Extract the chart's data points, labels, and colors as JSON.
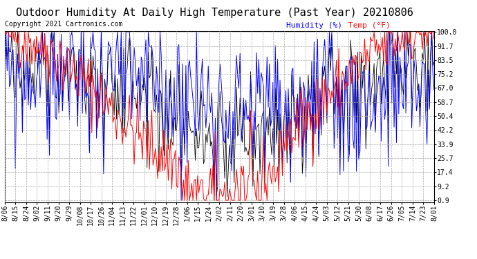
{
  "title": "Outdoor Humidity At Daily High Temperature (Past Year) 20210806",
  "copyright": "Copyright 2021 Cartronics.com",
  "legend_humidity": "Humidity (%)",
  "legend_temp": "Temp (°F)",
  "humidity_color": "#0000FF",
  "temp_color": "#FF0000",
  "black_color": "#000000",
  "background_color": "#FFFFFF",
  "grid_color": "#AAAAAA",
  "yticks": [
    0.9,
    9.2,
    17.4,
    25.7,
    33.9,
    42.2,
    50.4,
    58.7,
    67.0,
    75.2,
    83.5,
    91.7,
    100.0
  ],
  "xtick_labels": [
    "8/06",
    "8/15",
    "8/24",
    "9/02",
    "9/11",
    "9/20",
    "9/29",
    "10/08",
    "10/17",
    "10/26",
    "11/04",
    "11/13",
    "11/22",
    "12/01",
    "12/10",
    "12/19",
    "12/28",
    "1/06",
    "1/15",
    "1/24",
    "2/02",
    "2/11",
    "2/20",
    "3/01",
    "3/10",
    "3/19",
    "3/28",
    "4/06",
    "4/15",
    "4/24",
    "5/03",
    "5/12",
    "5/21",
    "5/30",
    "6/08",
    "6/17",
    "6/26",
    "7/05",
    "7/14",
    "7/23",
    "8/01"
  ],
  "n_points": 366,
  "ylim_min": 0.9,
  "ylim_max": 100.0,
  "title_fontsize": 11,
  "copyright_fontsize": 7,
  "legend_fontsize": 8,
  "tick_fontsize": 7
}
